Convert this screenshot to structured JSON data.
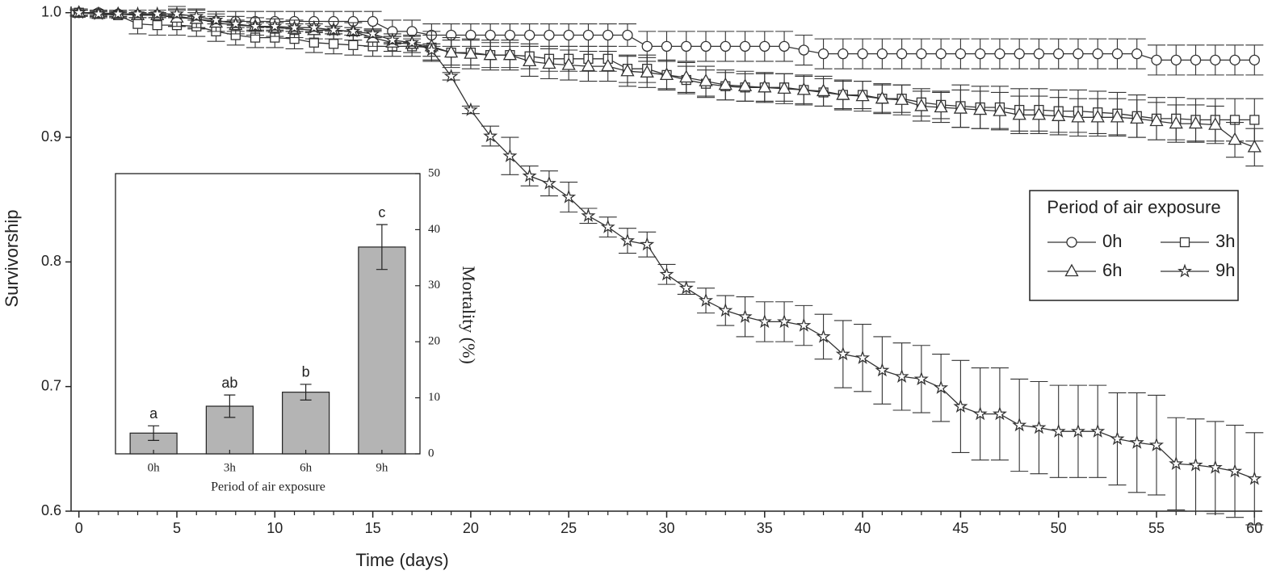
{
  "chart_data": [
    {
      "type": "line",
      "xlabel": "Time (days)",
      "ylabel": "Survivorship",
      "xlim": [
        -0.4,
        60.4
      ],
      "ylim": [
        0.6,
        1.005
      ],
      "xticks": [
        0,
        5,
        10,
        15,
        20,
        25,
        30,
        35,
        40,
        45,
        50,
        55,
        60
      ],
      "yticks": [
        {
          "value": 0.6,
          "label": "0.6"
        },
        {
          "value": 0.7,
          "label": "0.7"
        },
        {
          "value": 0.8,
          "label": "0.8"
        },
        {
          "value": 0.9,
          "label": "0.9"
        },
        {
          "value": 1.0,
          "label": "1.0"
        }
      ],
      "legend": {
        "title": "Period of air exposure",
        "position": "right"
      },
      "x": [
        0,
        1,
        2,
        3,
        4,
        5,
        6,
        7,
        8,
        9,
        10,
        11,
        12,
        13,
        14,
        15,
        16,
        17,
        18,
        19,
        20,
        21,
        22,
        23,
        24,
        25,
        26,
        27,
        28,
        29,
        30,
        31,
        32,
        33,
        34,
        35,
        36,
        37,
        38,
        39,
        40,
        41,
        42,
        43,
        44,
        45,
        46,
        47,
        48,
        49,
        50,
        51,
        52,
        53,
        54,
        55,
        56,
        57,
        58,
        59,
        60
      ],
      "series": [
        {
          "name": "0h",
          "marker": "circle",
          "color": "#333333",
          "values": [
            1.0,
            1.0,
            0.999,
            0.998,
            0.998,
            0.997,
            0.995,
            0.993,
            0.993,
            0.993,
            0.993,
            0.993,
            0.993,
            0.993,
            0.993,
            0.993,
            0.985,
            0.985,
            0.982,
            0.982,
            0.982,
            0.982,
            0.982,
            0.982,
            0.982,
            0.982,
            0.982,
            0.982,
            0.982,
            0.973,
            0.973,
            0.973,
            0.973,
            0.973,
            0.973,
            0.973,
            0.973,
            0.97,
            0.967,
            0.967,
            0.967,
            0.967,
            0.967,
            0.967,
            0.967,
            0.967,
            0.967,
            0.967,
            0.967,
            0.967,
            0.967,
            0.967,
            0.967,
            0.967,
            0.967,
            0.962,
            0.962,
            0.962,
            0.962,
            0.962,
            0.962
          ],
          "errors": [
            0.002,
            0.002,
            0.002,
            0.002,
            0.002,
            0.008,
            0.008,
            0.008,
            0.008,
            0.008,
            0.008,
            0.008,
            0.008,
            0.008,
            0.008,
            0.008,
            0.009,
            0.009,
            0.009,
            0.009,
            0.009,
            0.009,
            0.009,
            0.009,
            0.009,
            0.009,
            0.009,
            0.009,
            0.009,
            0.012,
            0.012,
            0.012,
            0.012,
            0.012,
            0.012,
            0.012,
            0.012,
            0.012,
            0.012,
            0.012,
            0.012,
            0.012,
            0.012,
            0.012,
            0.012,
            0.012,
            0.012,
            0.012,
            0.012,
            0.012,
            0.012,
            0.012,
            0.012,
            0.012,
            0.012,
            0.012,
            0.012,
            0.012,
            0.012,
            0.012,
            0.012
          ]
        },
        {
          "name": "3h",
          "marker": "square",
          "color": "#333333",
          "values": [
            1.0,
            0.999,
            0.998,
            0.991,
            0.99,
            0.99,
            0.989,
            0.985,
            0.982,
            0.98,
            0.98,
            0.979,
            0.976,
            0.975,
            0.974,
            0.973,
            0.973,
            0.973,
            0.972,
            0.968,
            0.968,
            0.966,
            0.966,
            0.965,
            0.963,
            0.963,
            0.963,
            0.963,
            0.955,
            0.955,
            0.95,
            0.946,
            0.943,
            0.941,
            0.94,
            0.94,
            0.94,
            0.938,
            0.936,
            0.934,
            0.934,
            0.931,
            0.931,
            0.928,
            0.926,
            0.925,
            0.924,
            0.924,
            0.922,
            0.922,
            0.921,
            0.921,
            0.92,
            0.919,
            0.917,
            0.915,
            0.915,
            0.914,
            0.914,
            0.914,
            0.914
          ],
          "errors": [
            0.002,
            0.002,
            0.002,
            0.008,
            0.008,
            0.008,
            0.008,
            0.008,
            0.008,
            0.008,
            0.008,
            0.008,
            0.008,
            0.008,
            0.008,
            0.008,
            0.008,
            0.008,
            0.01,
            0.01,
            0.01,
            0.01,
            0.01,
            0.01,
            0.01,
            0.01,
            0.01,
            0.01,
            0.011,
            0.011,
            0.011,
            0.011,
            0.011,
            0.011,
            0.011,
            0.011,
            0.011,
            0.011,
            0.011,
            0.011,
            0.011,
            0.011,
            0.011,
            0.011,
            0.011,
            0.017,
            0.017,
            0.017,
            0.017,
            0.017,
            0.017,
            0.017,
            0.017,
            0.017,
            0.017,
            0.017,
            0.017,
            0.017,
            0.017,
            0.017,
            0.017
          ]
        },
        {
          "name": "6h",
          "marker": "triangle",
          "color": "#333333",
          "values": [
            1.0,
            0.999,
            0.999,
            0.998,
            0.998,
            0.996,
            0.995,
            0.992,
            0.99,
            0.989,
            0.988,
            0.987,
            0.986,
            0.986,
            0.985,
            0.98,
            0.976,
            0.975,
            0.973,
            0.968,
            0.967,
            0.966,
            0.966,
            0.961,
            0.959,
            0.958,
            0.957,
            0.957,
            0.953,
            0.952,
            0.95,
            0.948,
            0.945,
            0.942,
            0.941,
            0.94,
            0.939,
            0.938,
            0.937,
            0.934,
            0.933,
            0.931,
            0.93,
            0.925,
            0.924,
            0.923,
            0.922,
            0.921,
            0.918,
            0.918,
            0.917,
            0.916,
            0.916,
            0.916,
            0.915,
            0.913,
            0.911,
            0.911,
            0.91,
            0.898,
            0.892
          ],
          "errors": [
            0.002,
            0.002,
            0.002,
            0.002,
            0.002,
            0.007,
            0.007,
            0.007,
            0.007,
            0.007,
            0.007,
            0.007,
            0.007,
            0.007,
            0.007,
            0.007,
            0.007,
            0.007,
            0.012,
            0.012,
            0.012,
            0.012,
            0.012,
            0.012,
            0.012,
            0.012,
            0.012,
            0.012,
            0.012,
            0.012,
            0.012,
            0.012,
            0.012,
            0.012,
            0.012,
            0.012,
            0.012,
            0.012,
            0.012,
            0.012,
            0.012,
            0.012,
            0.012,
            0.012,
            0.012,
            0.015,
            0.015,
            0.015,
            0.015,
            0.015,
            0.015,
            0.015,
            0.015,
            0.015,
            0.015,
            0.015,
            0.015,
            0.015,
            0.015,
            0.014,
            0.015
          ]
        },
        {
          "name": "9h",
          "marker": "star",
          "color": "#333333",
          "values": [
            1.0,
            0.999,
            0.999,
            0.999,
            0.999,
            0.999,
            0.997,
            0.994,
            0.991,
            0.989,
            0.989,
            0.988,
            0.988,
            0.986,
            0.985,
            0.983,
            0.978,
            0.976,
            0.97,
            0.949,
            0.922,
            0.901,
            0.885,
            0.869,
            0.863,
            0.852,
            0.837,
            0.828,
            0.817,
            0.814,
            0.79,
            0.779,
            0.769,
            0.761,
            0.756,
            0.752,
            0.752,
            0.749,
            0.74,
            0.726,
            0.723,
            0.713,
            0.708,
            0.706,
            0.699,
            0.684,
            0.678,
            0.678,
            0.669,
            0.667,
            0.664,
            0.664,
            0.664,
            0.658,
            0.655,
            0.653,
            0.638,
            0.637,
            0.635,
            0.632,
            0.626
          ],
          "errors": [
            0.003,
            0.003,
            0.003,
            0.003,
            0.003,
            0.003,
            0.003,
            0.003,
            0.003,
            0.003,
            0.003,
            0.003,
            0.003,
            0.003,
            0.003,
            0.003,
            0.003,
            0.003,
            0.005,
            0.003,
            0.003,
            0.008,
            0.015,
            0.008,
            0.01,
            0.012,
            0.006,
            0.008,
            0.01,
            0.01,
            0.008,
            0.005,
            0.01,
            0.012,
            0.016,
            0.016,
            0.016,
            0.016,
            0.018,
            0.027,
            0.027,
            0.027,
            0.027,
            0.027,
            0.027,
            0.037,
            0.037,
            0.037,
            0.037,
            0.037,
            0.037,
            0.037,
            0.037,
            0.037,
            0.04,
            0.04,
            0.037,
            0.037,
            0.037,
            0.037,
            0.037
          ]
        }
      ]
    },
    {
      "type": "bar",
      "xlabel": "Period of air exposure",
      "ylabel": "Mortality (%)",
      "yaxis_side": "right",
      "categories": [
        "0h",
        "3h",
        "6h",
        "9h"
      ],
      "values": [
        3.7,
        8.5,
        11.0,
        36.9
      ],
      "errors": [
        1.3,
        2.0,
        1.4,
        4.0
      ],
      "annotations": [
        "a",
        "ab",
        "b",
        "c"
      ],
      "color": "#b4b4b4",
      "ylim": [
        0,
        50
      ],
      "yticks": [
        0,
        10,
        20,
        30,
        40,
        50
      ]
    }
  ]
}
